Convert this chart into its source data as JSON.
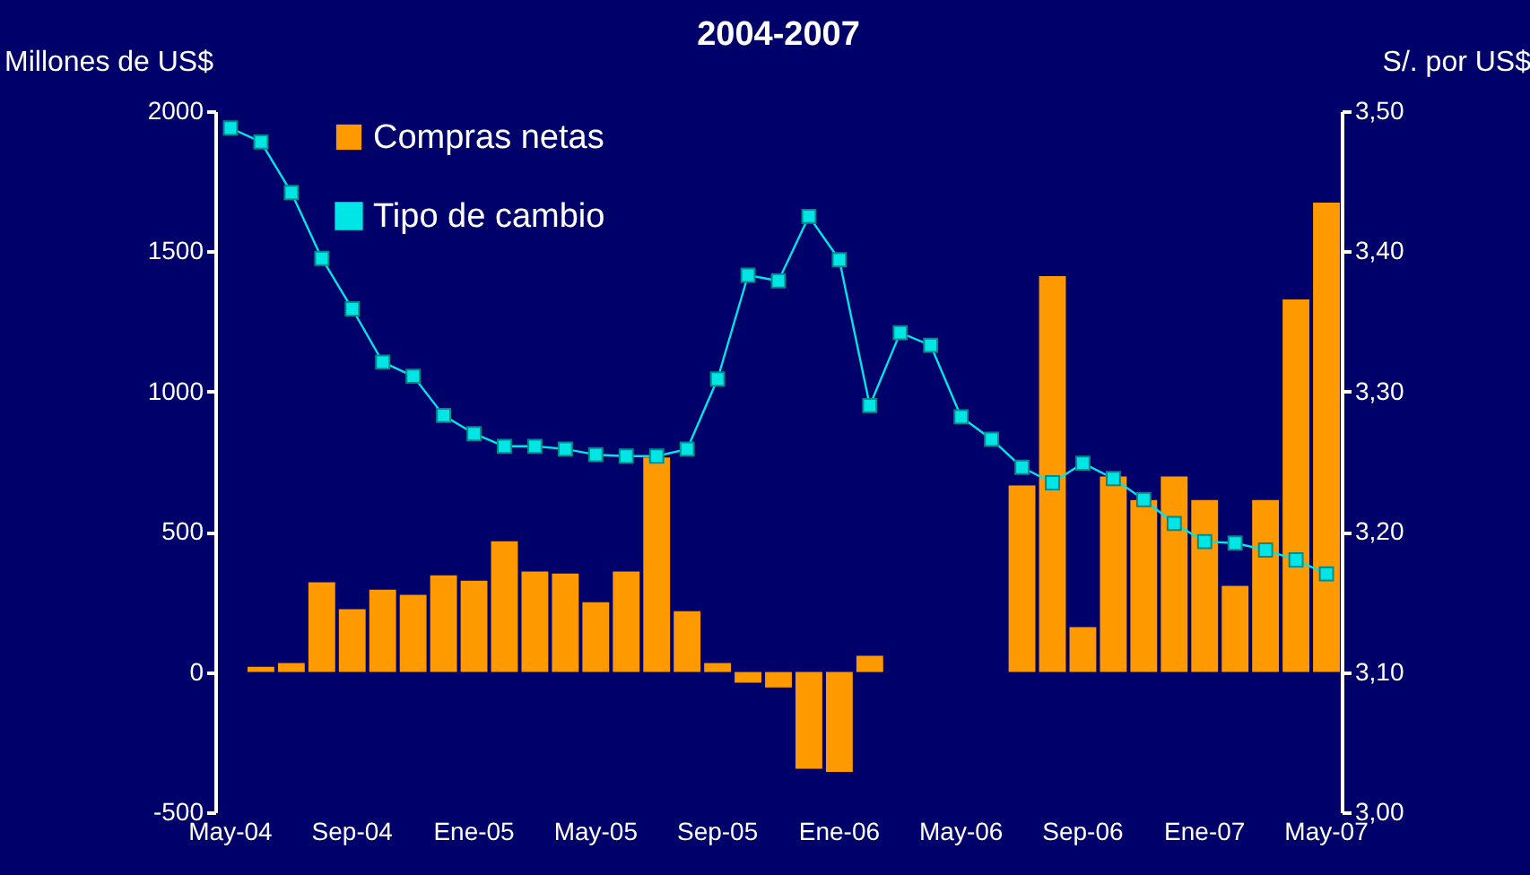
{
  "chart_data": {
    "type": "bar",
    "title": "2004-2007",
    "ylabel": "Millones de US$",
    "y2label": "S/. por US$",
    "categories": [
      "May-04",
      null,
      null,
      null,
      "Sep-04",
      null,
      null,
      null,
      "Ene-05",
      null,
      null,
      null,
      "May-05",
      null,
      null,
      null,
      "Sep-05",
      null,
      null,
      null,
      "Ene-06",
      null,
      null,
      null,
      "May-06",
      null,
      null,
      null,
      "Sep-06",
      null,
      null,
      null,
      "Ene-07",
      null,
      null,
      null,
      "May-07"
    ],
    "series": [
      {
        "name": "Compras netas",
        "color": "#ff9900",
        "values": [
          0,
          19,
          32,
          320,
          224,
          294,
          275,
          345,
          326,
          466,
          358,
          351,
          249,
          358,
          765,
          217,
          32,
          -38,
          -55,
          -345,
          -356,
          58,
          0,
          0,
          0,
          0,
          665,
          1412,
          160,
          697,
          613,
          697,
          613,
          307,
          613,
          1329,
          1674
        ]
      },
      {
        "name": "Tipo de cambio",
        "type": "line",
        "axis": "y2",
        "color": "#00e5e5",
        "values": [
          3.488,
          3.478,
          3.442,
          3.395,
          3.359,
          3.321,
          3.311,
          3.283,
          3.27,
          3.261,
          3.261,
          3.259,
          3.255,
          3.254,
          3.254,
          3.259,
          3.309,
          3.383,
          3.379,
          3.425,
          3.394,
          3.29,
          3.342,
          3.333,
          3.282,
          3.266,
          3.246,
          3.235,
          3.249,
          3.238,
          3.223,
          3.206,
          3.193,
          3.192,
          3.187,
          3.18,
          3.17
        ]
      }
    ],
    "ylim": [
      -500,
      2000
    ],
    "yticks": [
      -500,
      0,
      500,
      1000,
      1500,
      2000
    ],
    "y2lim": [
      3.0,
      3.5
    ],
    "y2ticks": [
      {
        "value": 3.0,
        "label": "3,00"
      },
      {
        "value": 3.1,
        "label": "3,10"
      },
      {
        "value": 3.2,
        "label": "3,20"
      },
      {
        "value": 3.3,
        "label": "3,30"
      },
      {
        "value": 3.4,
        "label": "3,40"
      },
      {
        "value": 3.5,
        "label": "3,50"
      }
    ],
    "legend": "top left",
    "marker": "square",
    "grid": false
  }
}
